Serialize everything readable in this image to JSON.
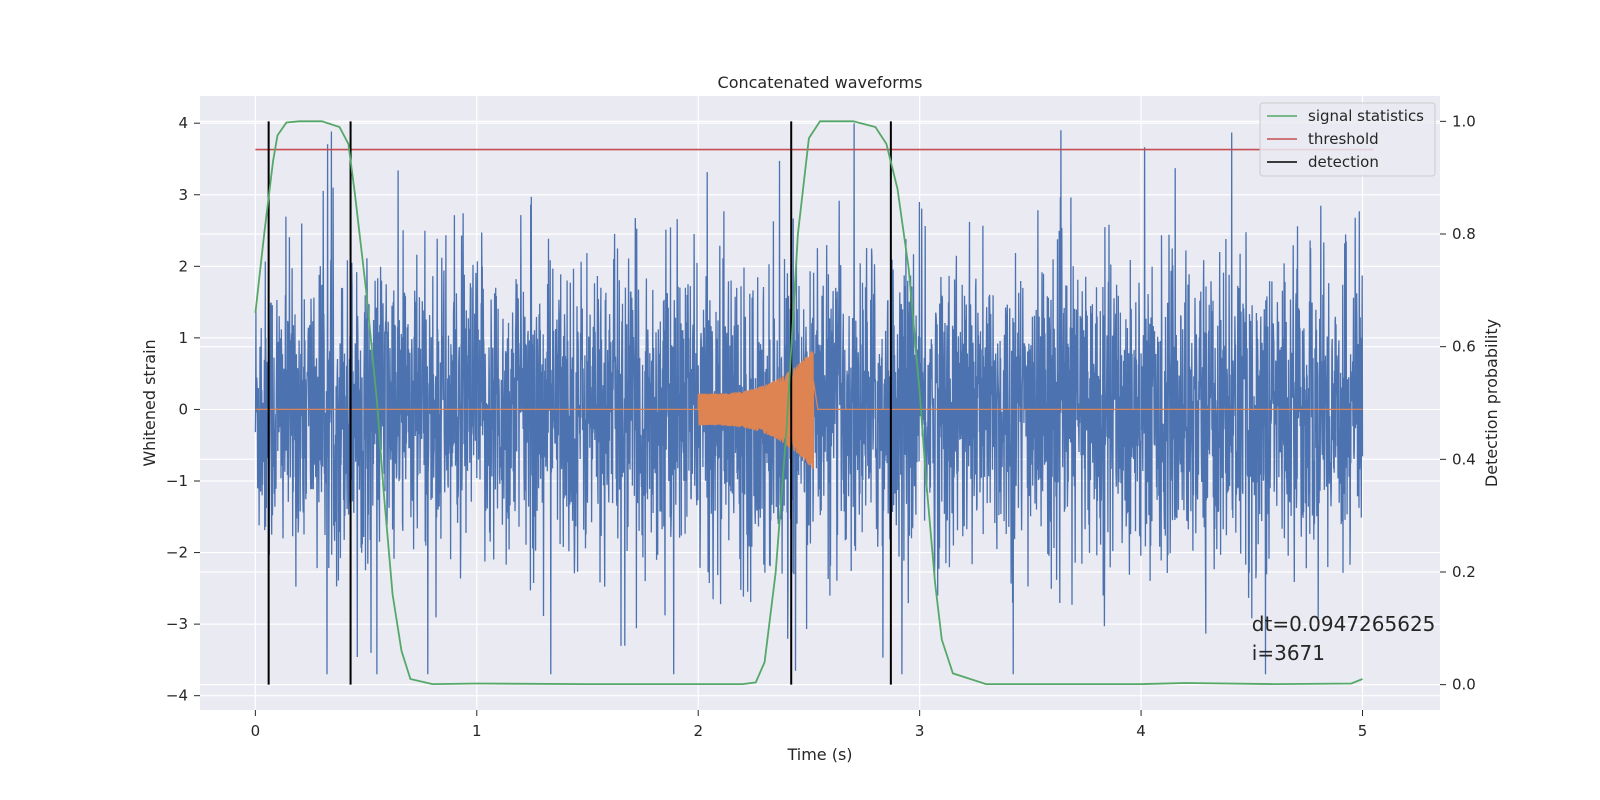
{
  "chart_data": {
    "type": "line",
    "title": "Concatenated waveforms",
    "xlabel": "Time (s)",
    "ylabel": "Whitened strain",
    "y2label": "Detection probability",
    "xlim": [
      -0.25,
      5.35
    ],
    "ylim": [
      -4.2,
      4.38
    ],
    "y2lim": [
      -0.045,
      1.045
    ],
    "xticks": [
      0,
      1,
      2,
      3,
      4,
      5
    ],
    "xtick_labels": [
      "0",
      "1",
      "2",
      "3",
      "4",
      "5"
    ],
    "yticks": [
      -4,
      -3,
      -2,
      -1,
      0,
      1,
      2,
      3,
      4
    ],
    "ytick_labels": [
      "−4",
      "−3",
      "−2",
      "−1",
      "0",
      "1",
      "2",
      "3",
      "4"
    ],
    "y2ticks": [
      0.0,
      0.2,
      0.4,
      0.6,
      0.8,
      1.0
    ],
    "y2tick_labels": [
      "0.0",
      "0.2",
      "0.4",
      "0.6",
      "0.8",
      "1.0"
    ],
    "grid": true,
    "legend_position": "upper right",
    "legend": [
      {
        "label": "signal statistics",
        "color": "#55a868"
      },
      {
        "label": "threshold",
        "color": "#c44e52"
      },
      {
        "label": "detection",
        "color": "#000000"
      }
    ],
    "series": [
      {
        "role": "whitened strain",
        "axis": "left",
        "color": "#4c72b0",
        "kind": "noise",
        "x_range": [
          0,
          5
        ],
        "amplitude_core": 1.2,
        "peak_max": 4.0,
        "peak_min": -3.7
      },
      {
        "role": "injected signal",
        "axis": "left",
        "color": "#dd8452",
        "kind": "chirp",
        "x_range": [
          0,
          5
        ],
        "chirp_start": 2.0,
        "chirp_end": 2.52,
        "amp_start": 0.22,
        "amp_end": 0.85
      },
      {
        "role": "signal statistics",
        "axis": "right",
        "color": "#55a868",
        "x": [
          0,
          0.04,
          0.08,
          0.1,
          0.14,
          0.2,
          0.3,
          0.38,
          0.42,
          0.45,
          0.5,
          0.55,
          0.58,
          0.62,
          0.66,
          0.7,
          0.8,
          1.0,
          1.5,
          2.0,
          2.2,
          2.26,
          2.3,
          2.35,
          2.4,
          2.45,
          2.5,
          2.55,
          2.7,
          2.8,
          2.85,
          2.9,
          2.95,
          3.0,
          3.03,
          3.07,
          3.1,
          3.15,
          3.3,
          3.6,
          4.0,
          4.2,
          4.6,
          4.95,
          5.0
        ],
        "y": [
          0.66,
          0.8,
          0.93,
          0.975,
          0.998,
          1.0,
          1.0,
          0.99,
          0.96,
          0.87,
          0.7,
          0.5,
          0.34,
          0.16,
          0.06,
          0.01,
          0.001,
          0.002,
          0.001,
          0.001,
          0.001,
          0.004,
          0.04,
          0.2,
          0.46,
          0.8,
          0.97,
          1.0,
          1.0,
          0.99,
          0.96,
          0.88,
          0.74,
          0.52,
          0.36,
          0.18,
          0.08,
          0.02,
          0.001,
          0.001,
          0.001,
          0.003,
          0.001,
          0.002,
          0.01
        ]
      },
      {
        "role": "threshold",
        "axis": "right",
        "color": "#c44e52",
        "x": [
          0,
          5.05
        ],
        "y": [
          0.95,
          0.95
        ]
      },
      {
        "role": "detection",
        "axis": "right",
        "color": "#000000",
        "x": [
          0.06,
          0.43,
          2.42,
          2.87
        ],
        "y_range": [
          0.0,
          1.0
        ]
      }
    ],
    "annotations": [
      {
        "text": "dt=0.0947265625",
        "x": 4.5,
        "y": -3.0
      },
      {
        "text": " i=3671",
        "x": 4.5,
        "y": -3.4
      }
    ]
  }
}
